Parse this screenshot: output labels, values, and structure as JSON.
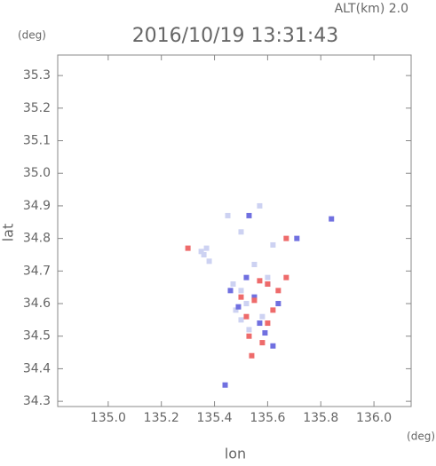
{
  "chart_data": {
    "type": "scatter",
    "title": "2016/10/19 13:31:43",
    "subtitle": "ALT(km) 2.0",
    "y_unit": "(deg)",
    "x_unit": "(deg)",
    "xlabel": "lon",
    "ylabel": "lat",
    "xlim": [
      134.81,
      136.14
    ],
    "ylim": [
      34.284,
      35.363
    ],
    "xticks": [
      {
        "value": 135,
        "label": "135.0"
      },
      {
        "value": 135.2,
        "label": "135.2"
      },
      {
        "value": 135.4,
        "label": "135.4"
      },
      {
        "value": 135.6,
        "label": "135.6"
      },
      {
        "value": 135.8,
        "label": "135.8"
      },
      {
        "value": 136,
        "label": "136.0"
      }
    ],
    "yticks": [
      {
        "value": 34.3,
        "label": "34.3"
      },
      34.4,
      34.5,
      34.6,
      34.7,
      34.8,
      34.9,
      {
        "value": 35,
        "label": "35.0"
      },
      35.1,
      35.2,
      35.3
    ],
    "series": [
      {
        "color": "#cdd2f2",
        "x": [
          135.36,
          135.38,
          135.35,
          135.37,
          135.47,
          135.5,
          135.52,
          135.48,
          135.55,
          135.58,
          135.5,
          135.53,
          135.45,
          135.57,
          135.55,
          135.5,
          135.62,
          135.6
        ],
        "values": [
          34.75,
          34.73,
          34.76,
          34.77,
          34.66,
          34.64,
          34.6,
          34.58,
          34.62,
          34.56,
          34.55,
          34.52,
          34.87,
          34.9,
          34.72,
          34.82,
          34.78,
          34.68
        ]
      },
      {
        "color": "#7070e0",
        "x": [
          135.46,
          135.53,
          135.6,
          135.64,
          135.49,
          135.57,
          135.62,
          135.52,
          135.59,
          135.84,
          135.71,
          135.44,
          135.55
        ],
        "values": [
          34.64,
          34.87,
          34.66,
          34.6,
          34.59,
          34.54,
          34.47,
          34.68,
          34.51,
          34.86,
          34.8,
          34.35,
          34.62
        ]
      },
      {
        "color": "#ee6b6b",
        "x": [
          135.6,
          135.55,
          135.52,
          135.58,
          135.64,
          135.5,
          135.54,
          135.62,
          135.57,
          135.67,
          135.53,
          135.6,
          135.3,
          135.67
        ],
        "values": [
          34.66,
          34.61,
          34.56,
          34.48,
          34.64,
          34.62,
          34.44,
          34.58,
          34.67,
          34.68,
          34.5,
          34.54,
          34.77,
          34.8
        ]
      }
    ]
  }
}
